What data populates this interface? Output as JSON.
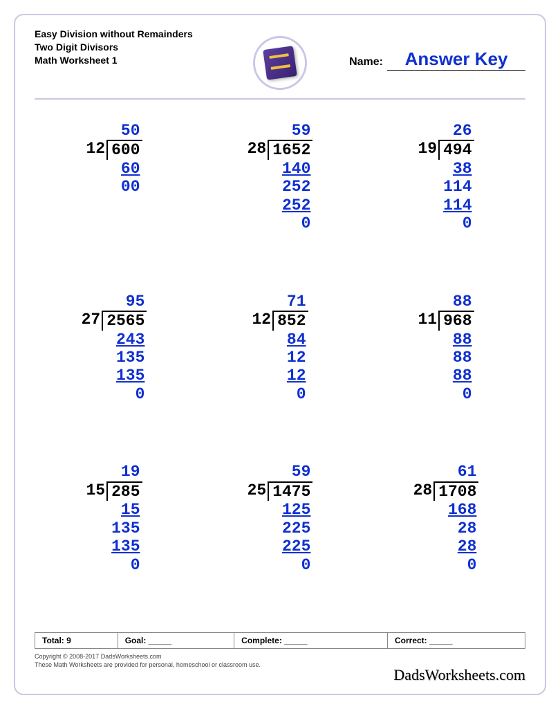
{
  "header": {
    "title_line1": "Easy Division without Remainders",
    "title_line2": "Two Digit Divisors",
    "title_line3": "Math Worksheet 1",
    "name_label": "Name:",
    "answer_key": "Answer Key"
  },
  "colors": {
    "border": "#c8c8e6",
    "answer": "#1030d0",
    "text": "#000000"
  },
  "problems": [
    {
      "divisor": "12",
      "dividend": "600",
      "quotient": "50",
      "work": [
        {
          "t": "60",
          "u": true
        },
        {
          "t": "00",
          "u": false
        }
      ]
    },
    {
      "divisor": "28",
      "dividend": "1652",
      "quotient": "59",
      "work": [
        {
          "t": "140",
          "u": true
        },
        {
          "t": "252",
          "u": false
        },
        {
          "t": "252",
          "u": true
        },
        {
          "t": "0",
          "u": false
        }
      ]
    },
    {
      "divisor": "19",
      "dividend": "494",
      "quotient": "26",
      "work": [
        {
          "t": "38",
          "u": true
        },
        {
          "t": "114",
          "u": false
        },
        {
          "t": "114",
          "u": true
        },
        {
          "t": "0",
          "u": false
        }
      ]
    },
    {
      "divisor": "27",
      "dividend": "2565",
      "quotient": "95",
      "work": [
        {
          "t": "243",
          "u": true
        },
        {
          "t": "135",
          "u": false
        },
        {
          "t": "135",
          "u": true
        },
        {
          "t": "0",
          "u": false
        }
      ]
    },
    {
      "divisor": "12",
      "dividend": "852",
      "quotient": "71",
      "work": [
        {
          "t": "84",
          "u": true
        },
        {
          "t": "12",
          "u": false
        },
        {
          "t": "12",
          "u": true
        },
        {
          "t": "0",
          "u": false
        }
      ]
    },
    {
      "divisor": "11",
      "dividend": "968",
      "quotient": "88",
      "work": [
        {
          "t": "88",
          "u": true
        },
        {
          "t": "88",
          "u": false
        },
        {
          "t": "88",
          "u": true
        },
        {
          "t": "0",
          "u": false
        }
      ]
    },
    {
      "divisor": "15",
      "dividend": "285",
      "quotient": "19",
      "work": [
        {
          "t": "15",
          "u": true
        },
        {
          "t": "135",
          "u": false
        },
        {
          "t": "135",
          "u": true
        },
        {
          "t": "0",
          "u": false
        }
      ]
    },
    {
      "divisor": "25",
      "dividend": "1475",
      "quotient": "59",
      "work": [
        {
          "t": "125",
          "u": true
        },
        {
          "t": "225",
          "u": false
        },
        {
          "t": "225",
          "u": true
        },
        {
          "t": "0",
          "u": false
        }
      ]
    },
    {
      "divisor": "28",
      "dividend": "1708",
      "quotient": "61",
      "work": [
        {
          "t": "168",
          "u": true
        },
        {
          "t": "28",
          "u": false
        },
        {
          "t": "28",
          "u": true
        },
        {
          "t": "0",
          "u": false
        }
      ]
    }
  ],
  "footer": {
    "total_label": "Total:",
    "total_value": "9",
    "goal_label": "Goal:",
    "goal_blank": "_____",
    "complete_label": "Complete:",
    "complete_blank": "_____",
    "correct_label": "Correct:",
    "correct_blank": "_____",
    "copyright": "Copyright © 2008-2017 DadsWorksheets.com",
    "note": "These Math Worksheets are provided for personal, homeschool or classroom use.",
    "brand": "DadsWorksheets.com"
  }
}
